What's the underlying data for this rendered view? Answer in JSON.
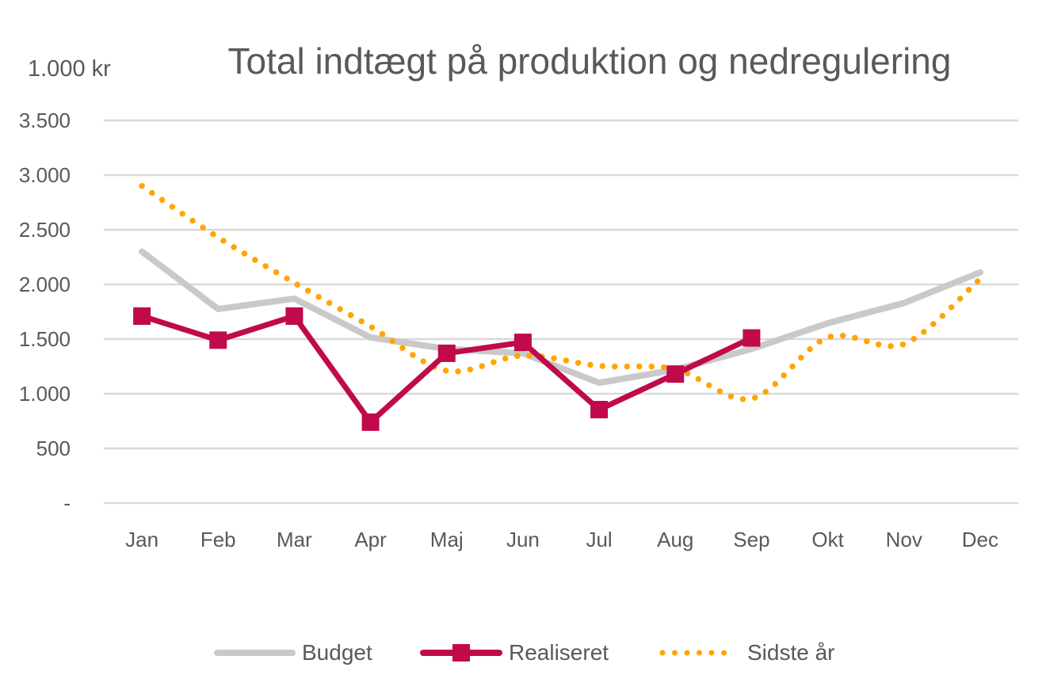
{
  "chart_data": {
    "type": "line",
    "title": "Total indtægt på produktion og nedregulering",
    "ylabel": "1.000 kr",
    "xlabel": "",
    "categories": [
      "Jan",
      "Feb",
      "Mar",
      "Apr",
      "Maj",
      "Jun",
      "Jul",
      "Aug",
      "Sep",
      "Okt",
      "Nov",
      "Dec"
    ],
    "ylim": [
      0,
      3500
    ],
    "yticks": [
      0,
      500,
      1000,
      1500,
      2000,
      2500,
      3000,
      3500
    ],
    "ytick_labels": [
      "-",
      "500",
      "1.000",
      "1.500",
      "2.000",
      "2.500",
      "3.000",
      "3.500"
    ],
    "grid": true,
    "legend_position": "bottom",
    "series": [
      {
        "name": "Budget",
        "color": "#c9c9c9",
        "style": "solid",
        "marker": "none",
        "values": [
          2300,
          1775,
          1870,
          1515,
          1410,
          1370,
          1100,
          1220,
          1410,
          1645,
          1830,
          2110
        ]
      },
      {
        "name": "Realiseret",
        "color": "#c00a4b",
        "style": "solid",
        "marker": "square",
        "values": [
          1710,
          1490,
          1710,
          740,
          1370,
          1470,
          855,
          1180,
          1510,
          null,
          null,
          null
        ]
      },
      {
        "name": "Sidste år",
        "color": "#ffa500",
        "style": "dotted",
        "marker": "none",
        "smooth": true,
        "values": [
          2900,
          2430,
          2015,
          1615,
          1210,
          1350,
          1255,
          1225,
          955,
          1515,
          1455,
          2050
        ]
      }
    ]
  }
}
